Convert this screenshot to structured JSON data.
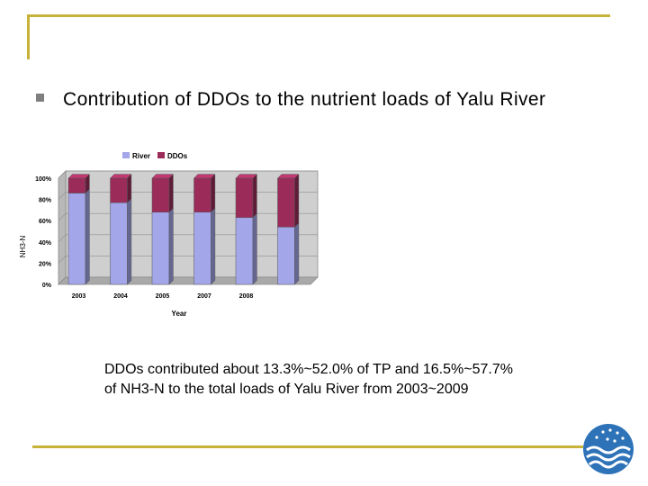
{
  "slide": {
    "title": "Contribution of DDOs to the nutrient loads of Yalu River",
    "caption_line1": "DDOs contributed about 13.3%~52.0% of TP and 16.5%~57.7%",
    "caption_line2": "of NH3-N to the total loads of Yalu River from 2003~2009"
  },
  "colors": {
    "accent": "#c9b23a",
    "river": "#a4a6ea",
    "ddos": "#9b2c5a",
    "logo": "#2e72b8"
  },
  "chart_data": {
    "type": "bar",
    "stacked": true,
    "percent": true,
    "categories": [
      "2003",
      "2004",
      "2005",
      "2007",
      "2008"
    ],
    "series": [
      {
        "name": "River",
        "values": [
          86,
          77,
          68,
          68,
          63
        ]
      },
      {
        "name": "DDOs",
        "values": [
          14,
          23,
          32,
          32,
          37
        ]
      }
    ],
    "extra_bar": {
      "name": "unlabeled",
      "values": [
        54,
        46
      ]
    },
    "yticks": [
      "0%",
      "20%",
      "40%",
      "60%",
      "80%",
      "100%"
    ],
    "ylim": [
      0,
      100
    ],
    "xlabel": "Year",
    "ylabel": "NH3-N",
    "legend_position": "top"
  }
}
